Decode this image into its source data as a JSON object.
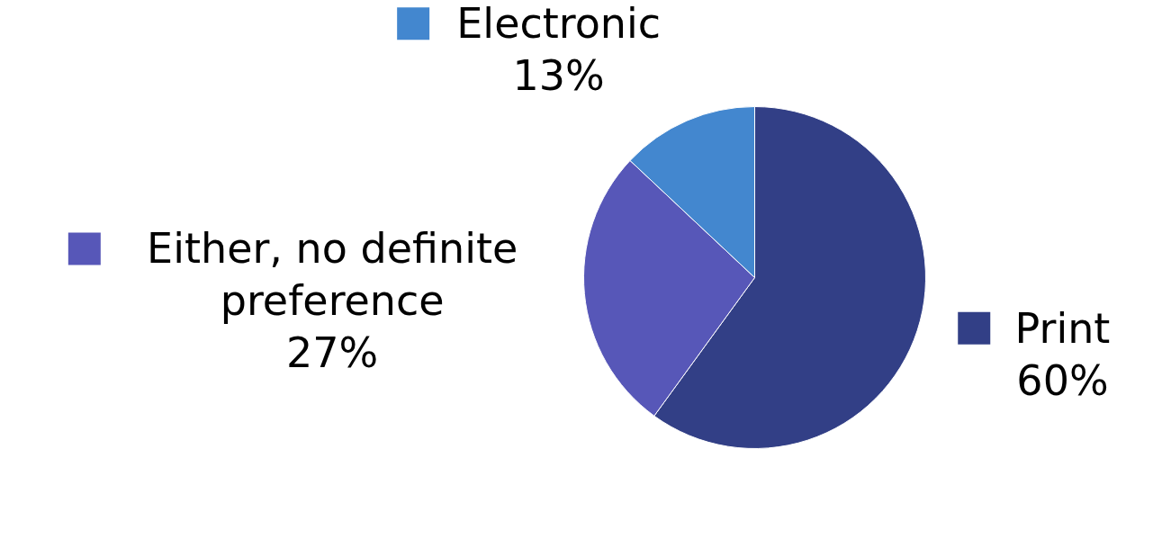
{
  "chart_data": {
    "type": "pie",
    "categories": [
      "Print",
      "Either, no definite preference",
      "Electronic"
    ],
    "values": [
      60,
      27,
      13
    ],
    "colors": [
      "#323f86",
      "#5757b8",
      "#4387cf"
    ],
    "value_labels": [
      "60%",
      "27%",
      "13%"
    ],
    "legend": "left"
  }
}
